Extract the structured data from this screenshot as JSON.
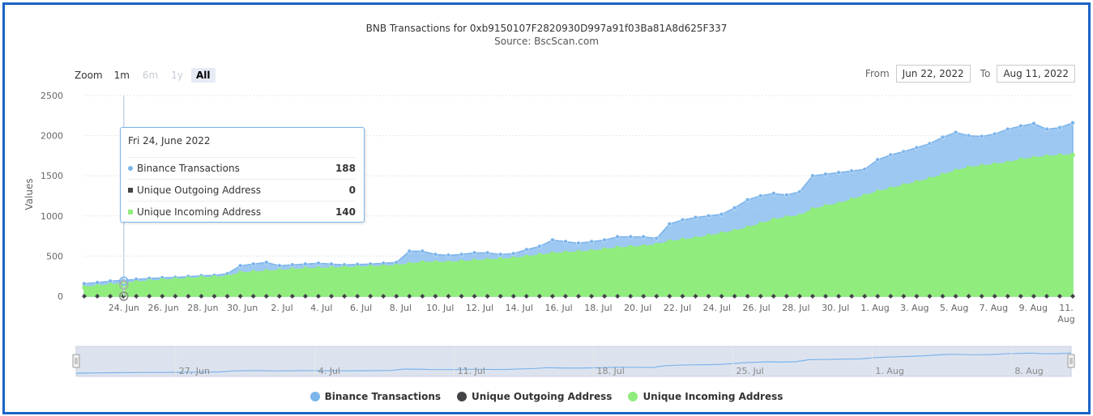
{
  "chart": {
    "title": "BNB Transactions for 0xb9150107F2820930D997a91f03Ba81A8d625F337",
    "subtitle": "Source: BscScan.com",
    "zoom_label": "Zoom",
    "zoom_options": [
      "1m",
      "6m",
      "1y",
      "All"
    ],
    "zoom_active": "All",
    "from_label": "From",
    "from_value": "Jun 22, 2022",
    "to_label": "To",
    "to_value": "Aug 11, 2022",
    "tooltip": {
      "date": "Fri 24, June 2022",
      "rows": [
        {
          "label": "Binance Transactions",
          "value": "188"
        },
        {
          "label": "Unique Outgoing Address",
          "value": "0"
        },
        {
          "label": "Unique Incoming Address",
          "value": "140"
        }
      ]
    },
    "navigator_labels": [
      "27. Jun",
      "4. Jul",
      "11. Jul",
      "18. Jul",
      "25. Jul",
      "1. Aug",
      "8. Aug"
    ]
  },
  "colors": {
    "binance": "#7cb5ec",
    "outgoing": "#434348",
    "incoming": "#90ed7d",
    "frame": "#1a63c6"
  },
  "chart_data": {
    "type": "area",
    "ylabel": "Values",
    "ylim": [
      0,
      2500
    ],
    "yticks": [
      0,
      500,
      1000,
      1500,
      2000,
      2500
    ],
    "x_start": "2022-06-22",
    "x_end": "2022-08-11",
    "xtick_labels": [
      "24. Jun",
      "26. Jun",
      "28. Jun",
      "30. Jun",
      "2. Jul",
      "4. Jul",
      "6. Jul",
      "8. Jul",
      "10. Jul",
      "12. Jul",
      "14. Jul",
      "16. Jul",
      "18. Jul",
      "20. Jul",
      "22. Jul",
      "24. Jul",
      "26. Jul",
      "28. Jul",
      "30. Jul",
      "1. Aug",
      "3. Aug",
      "5. Aug",
      "7. Aug",
      "9. Aug",
      "11. Aug"
    ],
    "series": [
      {
        "name": "Binance Transactions",
        "values": [
          155,
          170,
          188,
          200,
          210,
          222,
          230,
          235,
          245,
          255,
          260,
          280,
          380,
          400,
          420,
          380,
          390,
          400,
          410,
          400,
          390,
          395,
          400,
          410,
          420,
          560,
          560,
          520,
          510,
          520,
          540,
          540,
          520,
          530,
          580,
          620,
          700,
          680,
          660,
          680,
          700,
          740,
          740,
          740,
          720,
          900,
          950,
          980,
          1000,
          1020,
          1100,
          1200,
          1250,
          1280,
          1260,
          1300,
          1500,
          1520,
          1540,
          1560,
          1580,
          1700,
          1760,
          1800,
          1850,
          1900,
          1980,
          2040,
          2000,
          1990,
          2020,
          2080,
          2120,
          2150,
          2080,
          2100,
          2160
        ]
      },
      {
        "name": "Unique Outgoing Address",
        "values": [
          0,
          0,
          0,
          0,
          0,
          0,
          0,
          0,
          0,
          0,
          0,
          0,
          0,
          0,
          0,
          0,
          0,
          0,
          0,
          0,
          0,
          0,
          0,
          0,
          0,
          0,
          0,
          0,
          0,
          0,
          0,
          0,
          0,
          0,
          0,
          0,
          0,
          0,
          0,
          0,
          0,
          0,
          0,
          0,
          0,
          0,
          0,
          0,
          0,
          0,
          0,
          0,
          0,
          0,
          0,
          0,
          0,
          0,
          0,
          0,
          0,
          0,
          0,
          0,
          0,
          0,
          0,
          0,
          0,
          0,
          0,
          0,
          0,
          0,
          0,
          0,
          0
        ]
      },
      {
        "name": "Unique Incoming Address",
        "values": [
          110,
          125,
          140,
          160,
          175,
          190,
          200,
          210,
          220,
          230,
          235,
          245,
          290,
          300,
          310,
          320,
          330,
          340,
          345,
          350,
          355,
          360,
          365,
          370,
          380,
          400,
          420,
          420,
          420,
          430,
          440,
          450,
          460,
          470,
          490,
          510,
          530,
          540,
          550,
          560,
          580,
          600,
          610,
          620,
          640,
          680,
          700,
          720,
          750,
          780,
          810,
          850,
          900,
          950,
          980,
          1000,
          1080,
          1120,
          1150,
          1200,
          1250,
          1300,
          1340,
          1380,
          1420,
          1460,
          1510,
          1560,
          1600,
          1620,
          1640,
          1660,
          1700,
          1720,
          1740,
          1750,
          1760
        ]
      }
    ]
  }
}
